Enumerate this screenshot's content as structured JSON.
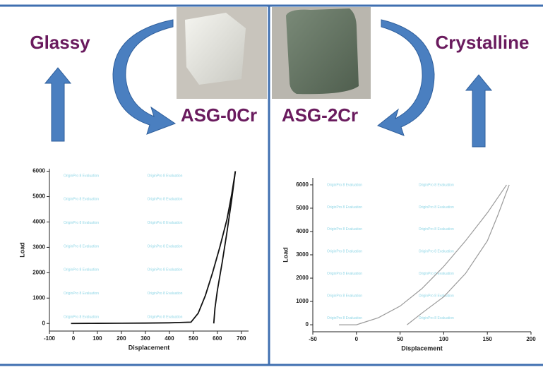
{
  "labels": {
    "left_state": "Glassy",
    "right_state": "Crystalline",
    "left_sample": "ASG-0Cr",
    "right_sample": "ASG-2Cr"
  },
  "chart_data": [
    {
      "type": "line",
      "xlabel": "Displacement",
      "ylabel": "Load",
      "watermark": "OriginPro 8 Evaluation",
      "xlim": [
        -100,
        730
      ],
      "xticks": [
        -100,
        0,
        100,
        200,
        300,
        400,
        500,
        600,
        700
      ],
      "ylim": [
        -300,
        6100
      ],
      "yticks": [
        0,
        1000,
        2000,
        3000,
        4000,
        5000,
        6000
      ],
      "series": [
        {
          "color": "#111111",
          "x": [
            -10,
            100,
            200,
            300,
            400,
            490,
            520,
            550,
            580,
            610,
            640,
            660,
            675
          ],
          "values": [
            0,
            5,
            10,
            15,
            25,
            50,
            400,
            1100,
            2000,
            3000,
            4100,
            5100,
            6000
          ]
        },
        {
          "color": "#111111",
          "x": [
            675,
            660,
            640,
            620,
            600,
            590,
            585
          ],
          "values": [
            6000,
            4900,
            3600,
            2400,
            1300,
            600,
            0
          ]
        }
      ]
    },
    {
      "type": "line",
      "xlabel": "Displacement",
      "ylabel": "Load",
      "watermark": "OriginPro 8 Evaluation",
      "xlim": [
        -50,
        200
      ],
      "xticks": [
        -50,
        0,
        50,
        100,
        150,
        200
      ],
      "ylim": [
        -300,
        6300
      ],
      "yticks": [
        0,
        1000,
        2000,
        3000,
        4000,
        5000,
        6000
      ],
      "series": [
        {
          "color": "#9a9a9a",
          "x": [
            -20,
            0,
            25,
            50,
            75,
            100,
            125,
            150,
            172
          ],
          "values": [
            0,
            0,
            300,
            800,
            1550,
            2500,
            3600,
            4800,
            6000
          ]
        },
        {
          "color": "#9a9a9a",
          "x": [
            175,
            162,
            150,
            125,
            100,
            75,
            58
          ],
          "values": [
            6000,
            4700,
            3600,
            2200,
            1200,
            500,
            0
          ]
        }
      ]
    }
  ]
}
